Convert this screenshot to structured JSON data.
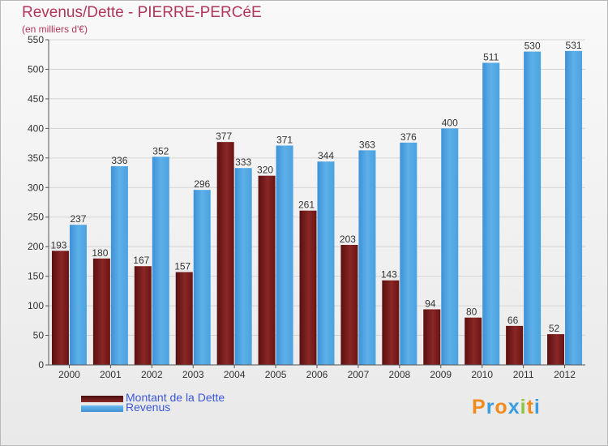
{
  "title": "Revenus/Dette - PIERRE-PERCéE",
  "subtitle": "(en milliers d'€)",
  "logo": "Proxiti",
  "colors": {
    "title": "#b0365a",
    "dette": "#7a1a1a",
    "revenus": "#4ea3e0",
    "legend_text": "#3b58d8",
    "grid": "#d4d4d4"
  },
  "chart_data": {
    "type": "bar",
    "title": "Revenus/Dette - PIERRE-PERCéE",
    "ylabel": "(en milliers d'€)",
    "xlabel": "",
    "categories": [
      "2000",
      "2001",
      "2002",
      "2003",
      "2004",
      "2005",
      "2006",
      "2007",
      "2008",
      "2009",
      "2010",
      "2011",
      "2012"
    ],
    "series": [
      {
        "name": "Montant de la Dette",
        "values": [
          193,
          180,
          167,
          157,
          377,
          320,
          261,
          203,
          143,
          94,
          80,
          66,
          52
        ]
      },
      {
        "name": "Revenus",
        "values": [
          237,
          336,
          352,
          296,
          333,
          371,
          344,
          363,
          376,
          400,
          511,
          530,
          531
        ]
      }
    ],
    "ylim": [
      0,
      550
    ],
    "yticks": [
      0,
      50,
      100,
      150,
      200,
      250,
      300,
      350,
      400,
      450,
      500,
      550
    ],
    "grid": true,
    "legend_position": "bottom-left"
  }
}
